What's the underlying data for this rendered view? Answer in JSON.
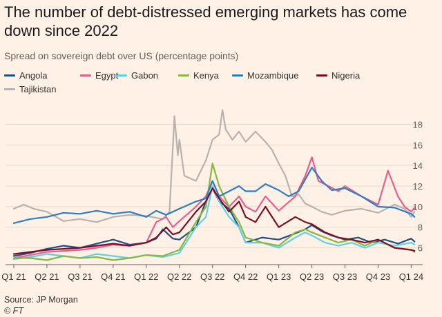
{
  "title": "The number of debt-distressed emerging markets has come down since 2022",
  "subtitle": "Spread on sovereign debt over US (percentage points)",
  "source": "Source: JP Morgan",
  "copyright": "© FT",
  "chart_data": {
    "type": "line",
    "title": "The number of debt-distressed emerging markets has come down since 2022",
    "subtitle": "Spread on sovereign debt over US (percentage points)",
    "x_tick_labels": [
      "Q1 21",
      "Q2 21",
      "Q3 21",
      "Q4 21",
      "Q1 22",
      "Q2 22",
      "Q3 22",
      "Q4 22",
      "Q1 23",
      "Q2 23",
      "Q3 23",
      "Q4 23",
      "Q1 24"
    ],
    "xlim": [
      0,
      12.2
    ],
    "y_ticks": [
      6,
      8,
      10,
      12,
      14,
      16,
      18
    ],
    "ylim": [
      4.5,
      19.5
    ],
    "y_axis_side": "right",
    "grid": true,
    "legend_position": "top",
    "series": [
      {
        "name": "Angola",
        "color": "#1f4e8c",
        "values": [
          [
            0,
            5.2
          ],
          [
            0.5,
            5.5
          ],
          [
            1,
            5.9
          ],
          [
            1.5,
            6.2
          ],
          [
            2,
            6.0
          ],
          [
            2.5,
            6.4
          ],
          [
            3,
            6.8
          ],
          [
            3.5,
            6.3
          ],
          [
            4,
            6.5
          ],
          [
            4.3,
            6.9
          ],
          [
            4.5,
            7.8
          ],
          [
            4.8,
            6.9
          ],
          [
            5,
            6.8
          ],
          [
            5.5,
            8.0
          ],
          [
            5.8,
            10.5
          ],
          [
            6,
            11.8
          ],
          [
            6.2,
            10.5
          ],
          [
            6.5,
            9.8
          ],
          [
            6.8,
            8.0
          ],
          [
            7,
            6.5
          ],
          [
            7.5,
            7.0
          ],
          [
            8,
            6.8
          ],
          [
            8.5,
            7.4
          ],
          [
            8.8,
            7.8
          ],
          [
            9,
            8.2
          ],
          [
            9.3,
            7.6
          ],
          [
            9.6,
            7.2
          ],
          [
            10,
            6.8
          ],
          [
            10.4,
            7.0
          ],
          [
            10.8,
            6.5
          ],
          [
            11.2,
            6.8
          ],
          [
            11.6,
            6.4
          ],
          [
            12,
            6.9
          ],
          [
            12.1,
            6.6
          ]
        ]
      },
      {
        "name": "Egypt",
        "color": "#e95d8c",
        "values": [
          [
            0,
            5.0
          ],
          [
            0.5,
            5.3
          ],
          [
            1,
            5.6
          ],
          [
            1.5,
            5.7
          ],
          [
            2,
            5.8
          ],
          [
            2.5,
            6.0
          ],
          [
            3,
            6.3
          ],
          [
            3.5,
            6.2
          ],
          [
            4,
            6.5
          ],
          [
            4.3,
            8.5
          ],
          [
            4.6,
            9.0
          ],
          [
            4.8,
            8.0
          ],
          [
            5,
            8.6
          ],
          [
            5.5,
            10.0
          ],
          [
            5.8,
            11.0
          ],
          [
            6,
            12.5
          ],
          [
            6.2,
            11.0
          ],
          [
            6.5,
            10.0
          ],
          [
            6.8,
            11.0
          ],
          [
            7,
            10.0
          ],
          [
            7.3,
            9.5
          ],
          [
            7.6,
            11.0
          ],
          [
            8,
            9.6
          ],
          [
            8.5,
            11.0
          ],
          [
            8.8,
            13.0
          ],
          [
            9,
            14.8
          ],
          [
            9.2,
            12.5
          ],
          [
            9.5,
            12.0
          ],
          [
            9.8,
            11.5
          ],
          [
            10,
            12.0
          ],
          [
            10.5,
            11.0
          ],
          [
            11,
            10.2
          ],
          [
            11.3,
            13.5
          ],
          [
            11.6,
            11.0
          ],
          [
            11.8,
            10.0
          ],
          [
            12,
            9.5
          ],
          [
            12.1,
            9.9
          ]
        ]
      },
      {
        "name": "Gabon",
        "color": "#5fd0e6",
        "values": [
          [
            0,
            4.9
          ],
          [
            0.5,
            5.1
          ],
          [
            1,
            5.4
          ],
          [
            1.5,
            5.2
          ],
          [
            2,
            5.0
          ],
          [
            2.5,
            5.4
          ],
          [
            3,
            5.2
          ],
          [
            3.5,
            5.0
          ],
          [
            4,
            5.3
          ],
          [
            4.5,
            5.1
          ],
          [
            5,
            5.5
          ],
          [
            5.5,
            8.0
          ],
          [
            5.8,
            9.0
          ],
          [
            6,
            12.0
          ],
          [
            6.2,
            10.5
          ],
          [
            6.5,
            9.0
          ],
          [
            6.8,
            8.0
          ],
          [
            7,
            6.5
          ],
          [
            7.5,
            6.5
          ],
          [
            8,
            6.0
          ],
          [
            8.5,
            7.0
          ],
          [
            8.8,
            7.5
          ],
          [
            9,
            7.2
          ],
          [
            9.4,
            6.5
          ],
          [
            9.8,
            6.2
          ],
          [
            10.2,
            6.5
          ],
          [
            10.6,
            6.0
          ],
          [
            11,
            6.5
          ],
          [
            11.5,
            6.2
          ],
          [
            12,
            6.5
          ],
          [
            12.1,
            6.3
          ]
        ]
      },
      {
        "name": "Kenya",
        "color": "#86b83f",
        "values": [
          [
            0,
            5.0
          ],
          [
            0.5,
            5.0
          ],
          [
            1,
            4.8
          ],
          [
            1.5,
            5.2
          ],
          [
            2,
            5.0
          ],
          [
            2.5,
            5.1
          ],
          [
            3,
            4.8
          ],
          [
            3.5,
            5.0
          ],
          [
            4,
            5.3
          ],
          [
            4.5,
            5.2
          ],
          [
            5,
            5.8
          ],
          [
            5.5,
            8.5
          ],
          [
            5.8,
            10.0
          ],
          [
            6,
            14.2
          ],
          [
            6.2,
            12.0
          ],
          [
            6.5,
            10.0
          ],
          [
            6.8,
            8.5
          ],
          [
            7,
            7.0
          ],
          [
            7.5,
            6.5
          ],
          [
            8,
            6.2
          ],
          [
            8.5,
            7.5
          ],
          [
            8.8,
            7.8
          ],
          [
            9,
            7.5
          ],
          [
            9.4,
            7.0
          ],
          [
            9.8,
            6.5
          ],
          [
            10.2,
            6.8
          ],
          [
            10.6,
            6.2
          ],
          [
            11,
            6.8
          ],
          [
            11.5,
            6.0
          ],
          [
            12,
            5.8
          ],
          [
            12.1,
            5.6
          ]
        ]
      },
      {
        "name": "Mozambique",
        "color": "#2b7cc9",
        "values": [
          [
            0,
            8.4
          ],
          [
            0.5,
            8.8
          ],
          [
            1,
            9.0
          ],
          [
            1.5,
            9.4
          ],
          [
            2,
            9.3
          ],
          [
            2.5,
            9.6
          ],
          [
            3,
            9.3
          ],
          [
            3.5,
            9.5
          ],
          [
            4,
            9.0
          ],
          [
            4.3,
            9.6
          ],
          [
            4.6,
            9.2
          ],
          [
            5,
            9.8
          ],
          [
            5.5,
            10.5
          ],
          [
            5.8,
            10.8
          ],
          [
            6,
            12.5
          ],
          [
            6.2,
            11.0
          ],
          [
            6.5,
            11.5
          ],
          [
            6.8,
            12.0
          ],
          [
            7,
            11.5
          ],
          [
            7.3,
            11.5
          ],
          [
            7.6,
            12.2
          ],
          [
            8,
            11.6
          ],
          [
            8.3,
            11.0
          ],
          [
            8.6,
            11.5
          ],
          [
            9,
            13.8
          ],
          [
            9.3,
            12.5
          ],
          [
            9.6,
            11.6
          ],
          [
            10,
            11.8
          ],
          [
            10.5,
            11.0
          ],
          [
            11,
            10.0
          ],
          [
            11.5,
            9.9
          ],
          [
            12,
            9.3
          ],
          [
            12.1,
            9.0
          ]
        ]
      },
      {
        "name": "Nigeria",
        "color": "#7d0c24",
        "values": [
          [
            0,
            5.4
          ],
          [
            0.5,
            5.6
          ],
          [
            1,
            5.8
          ],
          [
            1.5,
            5.9
          ],
          [
            2,
            6.0
          ],
          [
            2.5,
            6.2
          ],
          [
            3,
            6.4
          ],
          [
            3.5,
            6.2
          ],
          [
            4,
            6.5
          ],
          [
            4.3,
            7.0
          ],
          [
            4.6,
            8.0
          ],
          [
            4.8,
            7.3
          ],
          [
            5,
            7.5
          ],
          [
            5.5,
            9.5
          ],
          [
            5.8,
            10.5
          ],
          [
            6,
            11.8
          ],
          [
            6.2,
            10.8
          ],
          [
            6.5,
            9.5
          ],
          [
            6.8,
            10.5
          ],
          [
            7,
            9.0
          ],
          [
            7.3,
            8.5
          ],
          [
            7.6,
            10.0
          ],
          [
            8,
            8.0
          ],
          [
            8.5,
            9.0
          ],
          [
            8.8,
            8.5
          ],
          [
            9,
            8.3
          ],
          [
            9.4,
            7.5
          ],
          [
            9.8,
            7.0
          ],
          [
            10.2,
            6.8
          ],
          [
            10.6,
            6.5
          ],
          [
            11,
            6.8
          ],
          [
            11.5,
            6.0
          ],
          [
            12,
            5.8
          ],
          [
            12.1,
            5.7
          ]
        ]
      },
      {
        "name": "Tajikistan",
        "color": "#b8b2ad",
        "values": [
          [
            0,
            9.8
          ],
          [
            0.3,
            10.2
          ],
          [
            0.6,
            9.8
          ],
          [
            1,
            9.5
          ],
          [
            1.5,
            8.6
          ],
          [
            2,
            8.8
          ],
          [
            2.5,
            8.5
          ],
          [
            3,
            9.0
          ],
          [
            3.5,
            9.2
          ],
          [
            4,
            9.1
          ],
          [
            4.5,
            8.8
          ],
          [
            4.7,
            9.5
          ],
          [
            4.85,
            18.8
          ],
          [
            4.95,
            15.0
          ],
          [
            5,
            16.5
          ],
          [
            5.15,
            13.0
          ],
          [
            5.5,
            12.5
          ],
          [
            5.8,
            14.5
          ],
          [
            6,
            16.5
          ],
          [
            6.2,
            17.0
          ],
          [
            6.3,
            19.4
          ],
          [
            6.4,
            17.5
          ],
          [
            6.6,
            16.5
          ],
          [
            6.8,
            17.3
          ],
          [
            7,
            16.3
          ],
          [
            7.3,
            17.3
          ],
          [
            7.6,
            16.3
          ],
          [
            7.8,
            15.5
          ],
          [
            8,
            14.2
          ],
          [
            8.2,
            13.0
          ],
          [
            8.4,
            11.0
          ],
          [
            8.6,
            11.2
          ],
          [
            8.8,
            10.3
          ],
          [
            9,
            10.0
          ],
          [
            9.3,
            9.5
          ],
          [
            9.6,
            9.2
          ],
          [
            10,
            9.6
          ],
          [
            10.5,
            9.8
          ],
          [
            11,
            9.4
          ],
          [
            11.5,
            10.2
          ],
          [
            11.8,
            9.8
          ],
          [
            12,
            9.0
          ],
          [
            12.1,
            9.5
          ]
        ]
      }
    ]
  }
}
